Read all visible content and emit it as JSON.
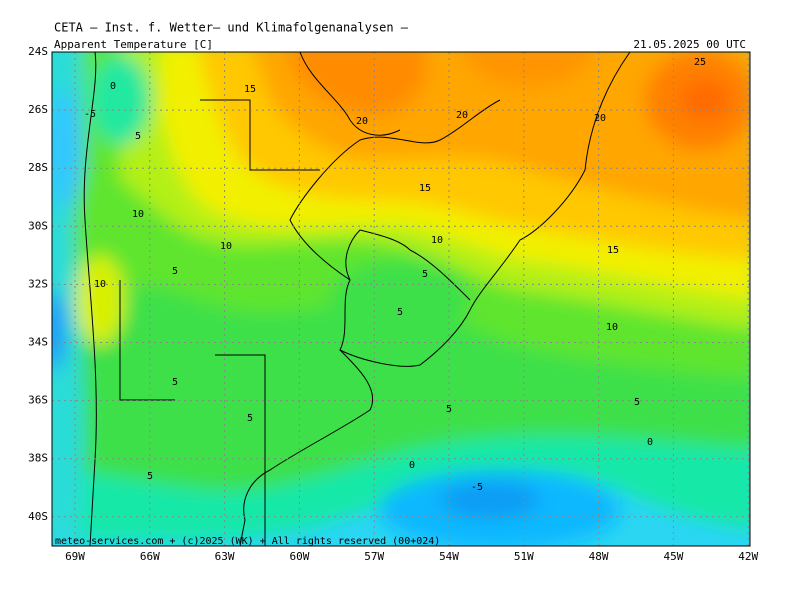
{
  "header": {
    "title": "CETA — Inst. f. Wetter— und Klimafolgenanalysen —",
    "variable": "Apparent Temperature [C]",
    "date": "21.05.2025 00 UTC"
  },
  "map": {
    "lat_labels": [
      "24S",
      "26S",
      "28S",
      "30S",
      "32S",
      "34S",
      "36S",
      "38S",
      "40S"
    ],
    "lon_labels": [
      "69W",
      "66W",
      "63W",
      "60W",
      "57W",
      "54W",
      "51W",
      "48W",
      "45W",
      "42W"
    ],
    "contour_labels": [
      "0",
      "-5",
      "15",
      "5",
      "20",
      "20",
      "20",
      "25",
      "15",
      "10",
      "10",
      "10",
      "15",
      "5",
      "5",
      "10",
      "5",
      "10",
      "5",
      "5",
      "5",
      "5",
      "0",
      "0",
      "5",
      "-5"
    ]
  },
  "footer": {
    "credit": "meteo-services.com + (c)2025 (WK) + All rights reserved (00+024)"
  }
}
